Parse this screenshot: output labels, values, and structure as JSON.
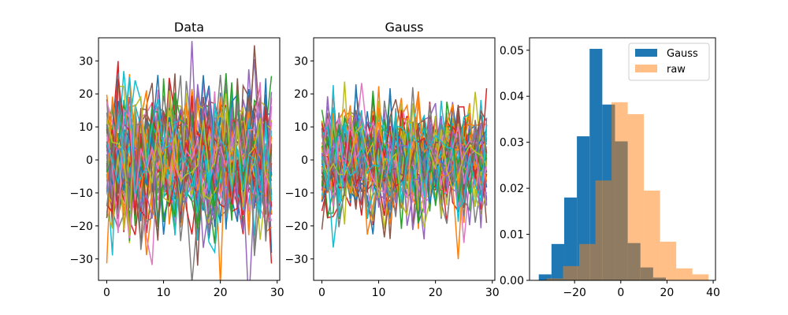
{
  "chart_data": [
    {
      "type": "line",
      "title": "Data",
      "xlim": [
        -1.45,
        30.45
      ],
      "ylim": [
        -36.5,
        37
      ],
      "xticks": [
        0,
        10,
        20,
        30
      ],
      "yticks": [
        -30,
        -20,
        -10,
        0,
        10,
        20,
        30
      ],
      "n_points": 30,
      "n_series": 60,
      "noise_std": 11,
      "grid": false,
      "legend": false
    },
    {
      "type": "line",
      "title": "Gauss",
      "xlim": [
        -1.45,
        30.45
      ],
      "ylim": [
        -36.5,
        37
      ],
      "xticks": [
        0,
        10,
        20,
        30
      ],
      "yticks": [
        -30,
        -20,
        -10,
        0,
        10,
        20,
        30
      ],
      "n_points": 30,
      "n_series": 60,
      "noise_std": 8,
      "grid": false,
      "legend": false
    },
    {
      "type": "histogram",
      "title": "",
      "xlim": [
        -39.5,
        41
      ],
      "ylim": [
        0,
        0.0527
      ],
      "xticks": [
        -20,
        0,
        20,
        40
      ],
      "yticks": [
        0,
        0.01,
        0.02,
        0.03,
        0.04,
        0.05
      ],
      "ytick_labels": [
        "0.00",
        "0.01",
        "0.02",
        "0.03",
        "0.04",
        "0.05"
      ],
      "legend_position": "upper right",
      "series": [
        {
          "name": "Gauss",
          "color": "#1f77b4",
          "alpha": 1.0,
          "bin_edges": [
            -35.5,
            -30.0,
            -24.5,
            -19.0,
            -13.5,
            -8.0,
            -2.5,
            3.0,
            8.5,
            14.0,
            19.5
          ],
          "density": [
            0.0013,
            0.0079,
            0.018,
            0.0313,
            0.0503,
            0.0382,
            0.0302,
            0.0081,
            0.0028,
            0.0006
          ]
        },
        {
          "name": "raw",
          "color": "#ff7f0e",
          "alpha": 0.5,
          "bin_edges": [
            -32.0,
            -25.0,
            -18.0,
            -11.0,
            -4.0,
            3.0,
            10.0,
            17.0,
            24.0,
            31.0,
            38.0
          ],
          "density": [
            0.0004,
            0.0031,
            0.0079,
            0.0217,
            0.0387,
            0.0361,
            0.0195,
            0.0084,
            0.0026,
            0.0013
          ]
        }
      ]
    }
  ],
  "colors": {
    "cycle": [
      "#1f77b4",
      "#ff7f0e",
      "#2ca02c",
      "#d62728",
      "#9467bd",
      "#8c564b",
      "#e377c2",
      "#7f7f7f",
      "#bcbd22",
      "#17becf"
    ]
  }
}
